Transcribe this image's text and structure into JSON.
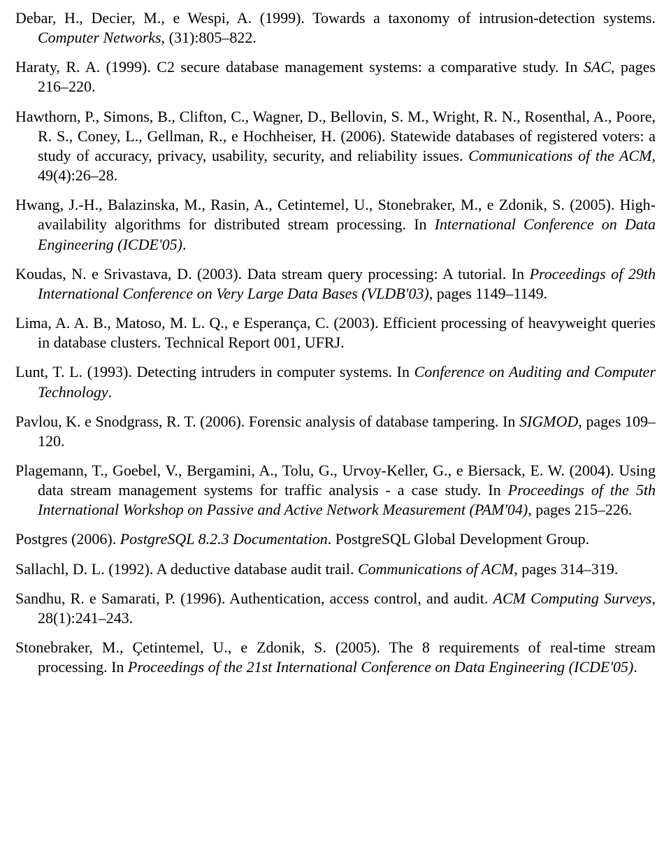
{
  "refs": [
    {
      "pre": "Debar, H., Decier, M., e Wespi, A. (1999). Towards a taxonomy of intrusion-detection systems. ",
      "ital": "Computer Networks",
      "post": ", (31):805–822."
    },
    {
      "pre": "Haraty, R. A. (1999). C2 secure database management systems: a comparative study. In ",
      "ital": "SAC",
      "post": ", pages 216–220."
    },
    {
      "pre": "Hawthorn, P., Simons, B., Clifton, C., Wagner, D., Bellovin, S. M., Wright, R. N., Rosenthal, A., Poore, R. S., Coney, L., Gellman, R., e Hochheiser, H. (2006). Statewide databases of registered voters: a study of accuracy, privacy, usability, security, and reliability issues. ",
      "ital": "Communications of the ACM",
      "post": ", 49(4):26–28."
    },
    {
      "pre": "Hwang, J.-H., Balazinska, M., Rasin, A., Cetintemel, U., Stonebraker, M., e Zdonik, S. (2005). High-availability algorithms for distributed stream processing. In ",
      "ital": "International Conference on Data Engineering (ICDE'05)",
      "post": "."
    },
    {
      "pre": "Koudas, N. e Srivastava, D. (2003). Data stream query processing: A tutorial. In ",
      "ital": "Proceedings of 29th International Conference on Very Large Data Bases (VLDB'03)",
      "post": ", pages 1149–1149."
    },
    {
      "pre": "Lima, A. A. B., Matoso, M. L. Q., e Esperança, C. (2003). Efficient processing of heavyweight queries in database clusters. Technical Report 001, UFRJ.",
      "ital": "",
      "post": ""
    },
    {
      "pre": "Lunt, T. L. (1993). Detecting intruders in computer systems. In ",
      "ital": "Conference on Auditing and Computer Technology",
      "post": "."
    },
    {
      "pre": "Pavlou, K. e Snodgrass, R. T. (2006). Forensic analysis of database tampering. In ",
      "ital": "SIGMOD",
      "post": ", pages 109–120."
    },
    {
      "pre": "Plagemann, T., Goebel, V., Bergamini, A., Tolu, G., Urvoy-Keller, G., e Biersack, E. W. (2004). Using data stream management systems for traffic analysis - a case study. In ",
      "ital": "Proceedings of the 5th International Workshop on Passive and Active Network Measurement (PAM'04)",
      "post": ", pages 215–226."
    },
    {
      "pre": "Postgres (2006). ",
      "ital": "PostgreSQL 8.2.3 Documentation",
      "post": ". PostgreSQL Global Development Group."
    },
    {
      "pre": "Sallachl, D. L. (1992). A deductive database audit trail. ",
      "ital": "Communications of ACM",
      "post": ", pages 314–319."
    },
    {
      "pre": "Sandhu, R. e Samarati, P. (1996). Authentication, access control, and audit. ",
      "ital": "ACM Computing Surveys",
      "post": ", 28(1):241–243."
    },
    {
      "pre": "Stonebraker, M., Çetintemel, U., e Zdonik, S. (2005). The 8 requirements of real-time stream processing. In ",
      "ital": "Proceedings of the 21st International Conference on Data Engineering (ICDE'05)",
      "post": "."
    }
  ]
}
